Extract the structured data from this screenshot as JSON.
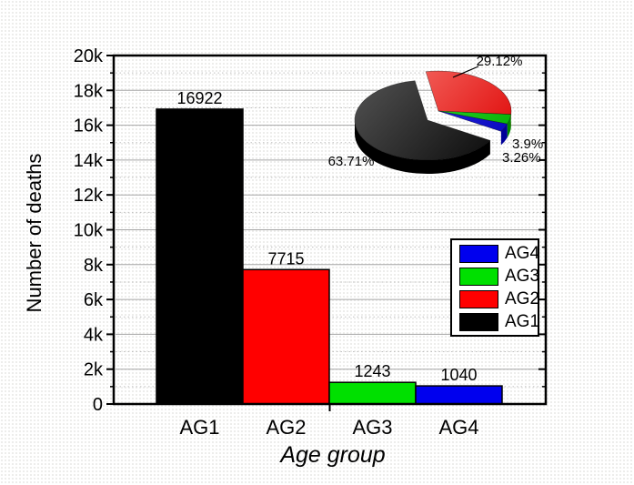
{
  "figure": {
    "background": "#ffffff",
    "style": "origin-like-statistical-figure"
  },
  "chart_data": [
    {
      "type": "bar",
      "title": "",
      "categories": [
        "AG1",
        "AG2",
        "AG3",
        "AG4"
      ],
      "values": [
        16922,
        7715,
        1243,
        1040
      ],
      "value_labels": [
        "16922",
        "7715",
        "1243",
        "1040"
      ],
      "colors": [
        "#000000",
        "#ff0000",
        "#00e000",
        "#0000ee"
      ],
      "xlabel": "Age group",
      "ylabel": "Number of deaths",
      "ylim": [
        0,
        20000
      ],
      "y_major_step": 2000,
      "y_minor_step": 1000,
      "y_tick_labels": [
        "0",
        "2k",
        "4k",
        "6k",
        "8k",
        "10k",
        "12k",
        "14k",
        "16k",
        "18k",
        "20k"
      ],
      "grid": {
        "major": "solid-gray",
        "minor": "dotted-gray"
      },
      "frame": "full-box-black"
    },
    {
      "type": "pie",
      "style": "3d-exploded-inset",
      "labels": [
        "AG2",
        "AG3",
        "AG4",
        "AG1"
      ],
      "values_percent": [
        29.12,
        3.9,
        3.26,
        63.71
      ],
      "value_labels": [
        "29.12%",
        "3.9%",
        "3.26%",
        "63.71%"
      ],
      "colors": [
        "#ff0000",
        "#00e000",
        "#0000ee",
        "#000000"
      ],
      "top_gradients": [
        [
          "#fa8078",
          "#dd0000"
        ],
        [
          "#44ee44",
          "#00aa00"
        ],
        [
          "#4444f4",
          "#0000b8"
        ],
        [
          "#555555",
          "#060606"
        ]
      ],
      "side_colors": [
        "#b30000",
        "#008800",
        "#000099",
        "#000000"
      ],
      "start_angle_clock_deg": -10,
      "exploded_slice": "AG1"
    }
  ],
  "legend": {
    "items": [
      {
        "label": "AG4",
        "color": "#0000ee"
      },
      {
        "label": "AG3",
        "color": "#00e000"
      },
      {
        "label": "AG2",
        "color": "#ff0000"
      },
      {
        "label": "AG1",
        "color": "#000000"
      }
    ]
  }
}
